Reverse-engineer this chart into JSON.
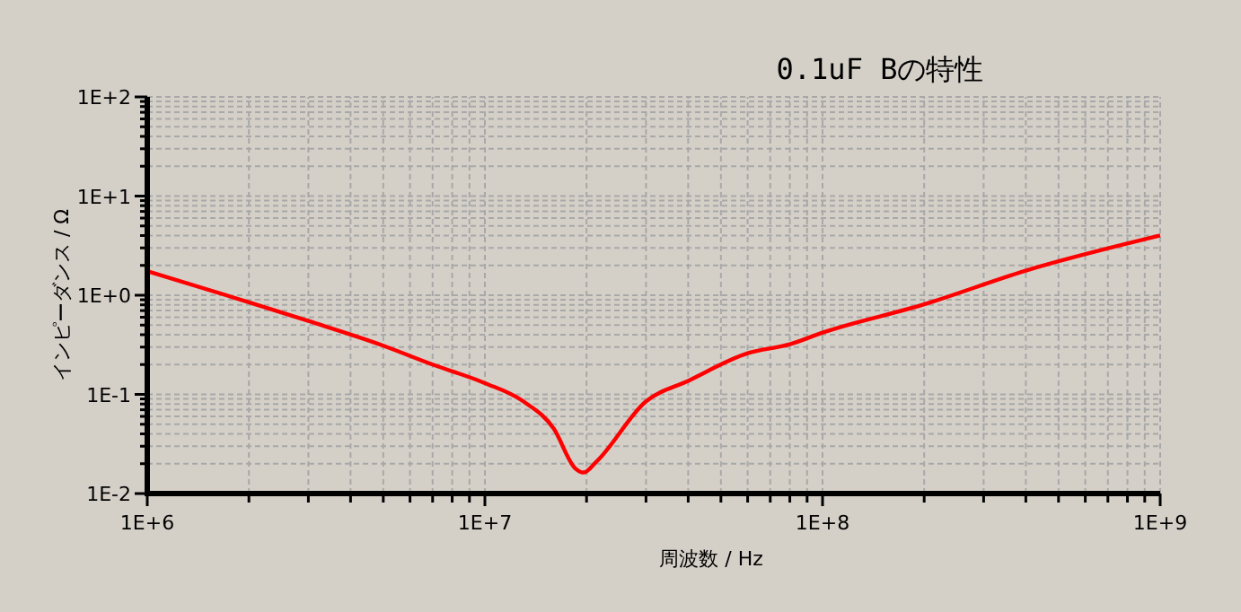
{
  "chart_data": {
    "type": "line",
    "title": "0.1uF Bの特性",
    "xlabel": "周波数 / Hz",
    "ylabel": "インピーダンス / Ω",
    "log": "xy",
    "grid": true,
    "marker": "none",
    "line_style": "solid",
    "xlim": [
      1000000,
      1000000000
    ],
    "ylim": [
      0.01,
      100
    ],
    "xticks": [
      {
        "value": 1000000,
        "label": "1E+6"
      },
      {
        "value": 2000000,
        "label": null
      },
      {
        "value": 3000000,
        "label": null
      },
      {
        "value": 4000000,
        "label": null
      },
      {
        "value": 5000000,
        "label": null
      },
      {
        "value": 6000000,
        "label": null
      },
      {
        "value": 7000000,
        "label": null
      },
      {
        "value": 8000000,
        "label": null
      },
      {
        "value": 9000000,
        "label": null
      },
      {
        "value": 10000000,
        "label": "1E+7"
      },
      {
        "value": 20000000,
        "label": null
      },
      {
        "value": 30000000,
        "label": null
      },
      {
        "value": 40000000,
        "label": null
      },
      {
        "value": 50000000,
        "label": null
      },
      {
        "value": 60000000,
        "label": null
      },
      {
        "value": 70000000,
        "label": null
      },
      {
        "value": 80000000,
        "label": null
      },
      {
        "value": 90000000,
        "label": null
      },
      {
        "value": 100000000,
        "label": "1E+8"
      },
      {
        "value": 200000000,
        "label": null
      },
      {
        "value": 300000000,
        "label": null
      },
      {
        "value": 400000000,
        "label": null
      },
      {
        "value": 500000000,
        "label": null
      },
      {
        "value": 600000000,
        "label": null
      },
      {
        "value": 700000000,
        "label": null
      },
      {
        "value": 800000000,
        "label": null
      },
      {
        "value": 900000000,
        "label": null
      },
      {
        "value": 1000000000,
        "label": "1E+9"
      }
    ],
    "yticks": [
      {
        "value": 0.01,
        "label": "1E-2"
      },
      {
        "value": 0.02,
        "label": null
      },
      {
        "value": 0.03,
        "label": null
      },
      {
        "value": 0.04,
        "label": null
      },
      {
        "value": 0.05,
        "label": null
      },
      {
        "value": 0.06,
        "label": null
      },
      {
        "value": 0.07,
        "label": null
      },
      {
        "value": 0.08,
        "label": null
      },
      {
        "value": 0.09,
        "label": null
      },
      {
        "value": 0.1,
        "label": "1E-1"
      },
      {
        "value": 0.2,
        "label": null
      },
      {
        "value": 0.3,
        "label": null
      },
      {
        "value": 0.4,
        "label": null
      },
      {
        "value": 0.5,
        "label": null
      },
      {
        "value": 0.6,
        "label": null
      },
      {
        "value": 0.7,
        "label": null
      },
      {
        "value": 0.8,
        "label": null
      },
      {
        "value": 0.9,
        "label": null
      },
      {
        "value": 1,
        "label": "1E+0"
      },
      {
        "value": 2,
        "label": null
      },
      {
        "value": 3,
        "label": null
      },
      {
        "value": 4,
        "label": null
      },
      {
        "value": 5,
        "label": null
      },
      {
        "value": 6,
        "label": null
      },
      {
        "value": 7,
        "label": null
      },
      {
        "value": 8,
        "label": null
      },
      {
        "value": 9,
        "label": null
      },
      {
        "value": 10,
        "label": "1E+1"
      },
      {
        "value": 20,
        "label": null
      },
      {
        "value": 30,
        "label": null
      },
      {
        "value": 40,
        "label": null
      },
      {
        "value": 50,
        "label": null
      },
      {
        "value": 60,
        "label": null
      },
      {
        "value": 70,
        "label": null
      },
      {
        "value": 80,
        "label": null
      },
      {
        "value": 90,
        "label": null
      },
      {
        "value": 100,
        "label": "1E+2"
      }
    ],
    "series": [
      {
        "color": "#ff0000",
        "x": [
          1000000,
          2000000,
          3000000,
          5000000,
          7000000,
          10000000,
          13000000,
          16000000,
          18500000,
          19600000,
          21400000,
          30000000,
          40000000,
          60000000,
          80000000,
          100000000,
          200000000,
          400000000,
          1000000000
        ],
        "values": [
          1.75,
          0.85,
          0.55,
          0.31,
          0.2,
          0.13,
          0.085,
          0.045,
          0.018,
          0.0163,
          0.021,
          0.085,
          0.137,
          0.26,
          0.32,
          0.42,
          0.81,
          1.77,
          4.0
        ]
      }
    ]
  }
}
